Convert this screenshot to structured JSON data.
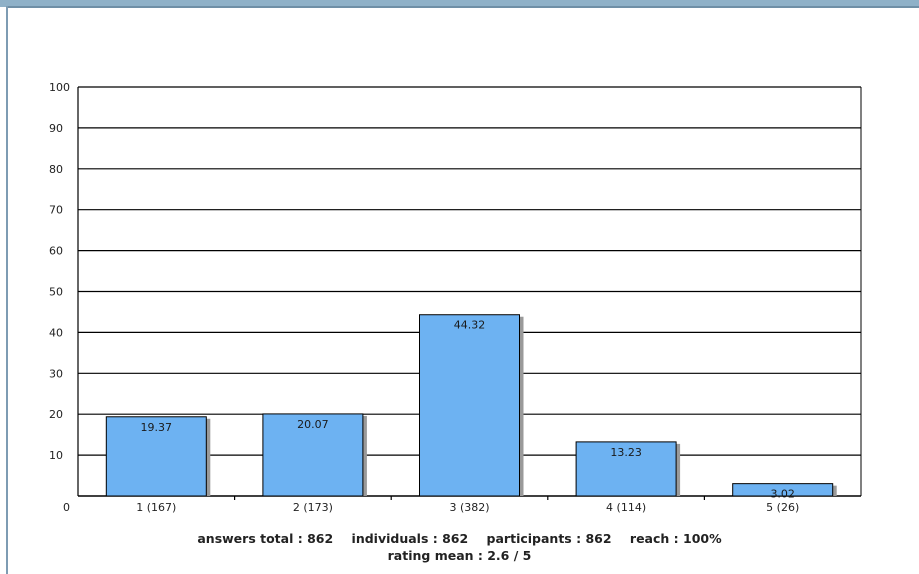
{
  "chart_data": {
    "type": "bar",
    "categories": [
      "1 (167)",
      "2 (173)",
      "3 (382)",
      "4 (114)",
      "5 (26)"
    ],
    "values": [
      19.37,
      20.07,
      44.32,
      13.23,
      3.02
    ],
    "data_labels": [
      "19.37",
      "20.07",
      "44.32",
      "13.23",
      "3.02"
    ],
    "y_ticks": [
      0,
      10,
      20,
      30,
      40,
      50,
      60,
      70,
      80,
      90,
      100
    ],
    "x_origin_label": "0",
    "ylim": [
      0,
      100
    ],
    "grid": true,
    "bar_color": "#6db2f2",
    "bar_shadow_color": "#9a9a9a"
  },
  "summary": {
    "answers_total": "answers total : 862",
    "individuals": "individuals : 862",
    "participants": "participants : 862",
    "reach": "reach : 100%",
    "rating_mean": "rating mean : 2.6 / 5"
  }
}
